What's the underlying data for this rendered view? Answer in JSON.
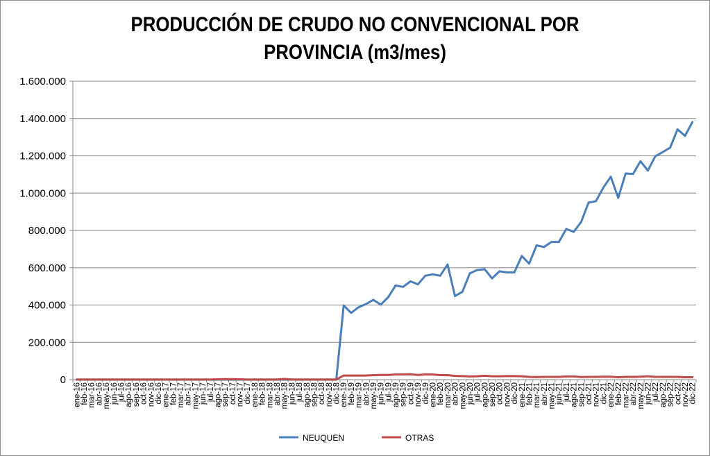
{
  "chart_data": {
    "type": "line",
    "title": "PRODUCCIÓN DE CRUDO NO CONVENCIONAL POR PROVINCIA (m3/mes)",
    "title_lines": [
      "PRODUCCIÓN DE CRUDO NO CONVENCIONAL POR",
      "PROVINCIA (m3/mes)"
    ],
    "ylim": [
      0,
      1600000
    ],
    "yticks": [
      0,
      200000,
      400000,
      600000,
      800000,
      1000000,
      1200000,
      1400000,
      1600000
    ],
    "ytick_labels": [
      "0",
      "200.000",
      "400.000",
      "600.000",
      "800.000",
      "1.000.000",
      "1.200.000",
      "1.400.000",
      "1.600.000"
    ],
    "grid": "horizontal",
    "legend_position": "bottom",
    "categories": [
      "ene-16",
      "feb-16",
      "mar-16",
      "abr-16",
      "may-16",
      "jun-16",
      "jul-16",
      "ago-16",
      "sep-16",
      "oct-16",
      "nov-16",
      "dic-16",
      "ene-17",
      "feb-17",
      "mar-17",
      "abr-17",
      "may-17",
      "jun-17",
      "jul-17",
      "ago-17",
      "sep-17",
      "oct-17",
      "nov-17",
      "dic-17",
      "ene-18",
      "feb-18",
      "mar-18",
      "abr-18",
      "may-18",
      "jun-18",
      "jul-18",
      "ago-18",
      "sep-18",
      "oct-18",
      "nov-18",
      "dic-18",
      "ene-19",
      "feb-19",
      "mar-19",
      "abr-19",
      "may-19",
      "jun-19",
      "jul-19",
      "ago-19",
      "sep-19",
      "oct-19",
      "nov-19",
      "dic-19",
      "ene-20",
      "feb-20",
      "mar-20",
      "abr-20",
      "may-20",
      "jun-20",
      "jul-20",
      "ago-20",
      "sep-20",
      "oct-20",
      "nov-20",
      "dic-20",
      "ene-21",
      "feb-21",
      "mar-21",
      "abr-21",
      "may-21",
      "jun-21",
      "jul-21",
      "ago-21",
      "sep-21",
      "oct-21",
      "nov-21",
      "dic-21",
      "ene-22",
      "feb-22",
      "mar-22",
      "abr-22",
      "may-22",
      "jun-22",
      "jul-22",
      "ago-22",
      "sep-22",
      "oct-22",
      "nov-22",
      "dic-22"
    ],
    "series": [
      {
        "name": "NEUQUEN",
        "color": "#4a7ebb",
        "values": [
          0,
          0,
          0,
          0,
          0,
          0,
          0,
          0,
          0,
          0,
          0,
          0,
          0,
          0,
          0,
          0,
          0,
          0,
          0,
          0,
          0,
          0,
          0,
          0,
          0,
          0,
          0,
          0,
          0,
          0,
          0,
          0,
          0,
          0,
          0,
          0,
          398000,
          358000,
          388000,
          405000,
          428000,
          402000,
          442000,
          505000,
          497000,
          527000,
          511000,
          557000,
          565000,
          557000,
          617000,
          448000,
          471000,
          570000,
          588000,
          592000,
          543000,
          581000,
          575000,
          575000,
          663000,
          622000,
          720000,
          711000,
          738000,
          738000,
          808000,
          792000,
          845000,
          949000,
          957000,
          1030000,
          1088000,
          975000,
          1105000,
          1103000,
          1171000,
          1121000,
          1198000,
          1220000,
          1244000,
          1342000,
          1307000,
          1381000
        ]
      },
      {
        "name": "OTRAS",
        "color": "#be4b48",
        "values": [
          1000,
          1000,
          1000,
          1000,
          1000,
          1000,
          1000,
          1000,
          1000,
          1000,
          1000,
          1000,
          1000,
          1000,
          1000,
          1000,
          1000,
          1000,
          1000,
          2000,
          3000,
          3000,
          2000,
          1000,
          1000,
          1000,
          1000,
          1000,
          4000,
          1000,
          1000,
          1000,
          1000,
          1000,
          1000,
          1000,
          22000,
          22000,
          22000,
          22000,
          24000,
          25000,
          25000,
          28000,
          28000,
          29000,
          25000,
          28000,
          28000,
          24000,
          24000,
          20000,
          19000,
          17000,
          18000,
          21000,
          18000,
          18000,
          19000,
          19000,
          18000,
          15000,
          14000,
          15000,
          15000,
          15000,
          17000,
          17000,
          14000,
          15000,
          15000,
          16000,
          16000,
          13000,
          15000,
          15000,
          16000,
          18000,
          15000,
          15000,
          15000,
          15000,
          13000,
          13000
        ]
      }
    ]
  }
}
